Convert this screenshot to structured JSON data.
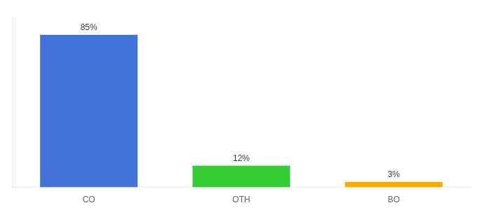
{
  "chart_data": {
    "type": "bar",
    "categories": [
      "CO",
      "OTH",
      "BO"
    ],
    "values": [
      85,
      12,
      3
    ],
    "value_labels": [
      "85%",
      "12%",
      "3%"
    ],
    "colors": [
      "#4472db",
      "#33cc33",
      "#ffaa00"
    ],
    "ylim": [
      0,
      95
    ],
    "data_labels": true,
    "tick_labels": "x",
    "grid": false
  }
}
